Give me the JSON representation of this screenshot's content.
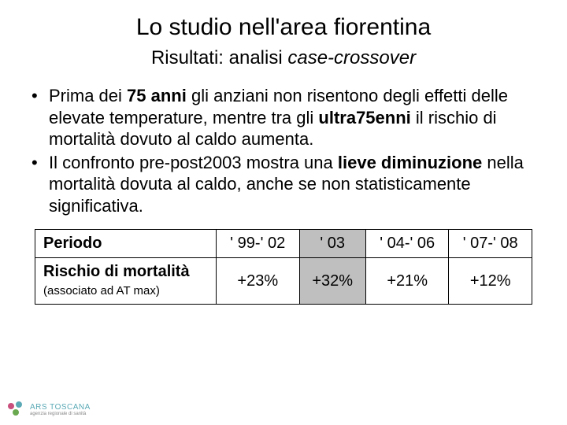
{
  "title": "Lo studio nell'area fiorentina",
  "subtitle_plain": "Risultati: analisi ",
  "subtitle_italic": "case-crossover",
  "bullets": [
    {
      "parts": [
        {
          "t": "Prima dei ",
          "b": false
        },
        {
          "t": "75 anni",
          "b": true
        },
        {
          "t": " gli anziani non risentono degli effetti delle elevate temperature, mentre tra gli ",
          "b": false
        },
        {
          "t": "ultra75enni",
          "b": true
        },
        {
          "t": " il rischio di mortalità dovuto al caldo aumenta.",
          "b": false
        }
      ]
    },
    {
      "parts": [
        {
          "t": "Il confronto pre-post2003 mostra una ",
          "b": false
        },
        {
          "t": "lieve diminuzione",
          "b": true
        },
        {
          "t": " nella mortalità dovuta al caldo, anche se non statisticamente significativa.",
          "b": false
        }
      ]
    }
  ],
  "table": {
    "header_label": "Periodo",
    "row_label_main": "Rischio di mortalità ",
    "row_label_small": "(associato ad AT max)",
    "columns": [
      "' 99-' 02",
      "' 03",
      "' 04-' 06",
      "' 07-' 08"
    ],
    "values": [
      "+23%",
      "+32%",
      "+21%",
      "+12%"
    ],
    "highlight_col": 1,
    "border_color": "#000000",
    "highlight_bg": "#bfbfbf",
    "cell_bg": "#ffffff",
    "font_size": 20
  },
  "logo": {
    "text": "ARS TOSCANA",
    "sub": "agenzia regionale di sanità",
    "color1": "#c94f7c",
    "color2": "#5aa9b5",
    "color3": "#6aa84f"
  }
}
